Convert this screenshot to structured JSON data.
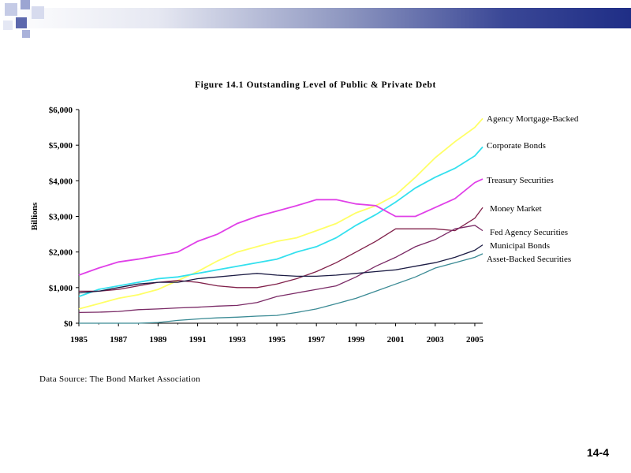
{
  "slide": {
    "number": "14-4"
  },
  "source_note": "Data Source: The Bond Market Association",
  "decor": {
    "bar_color": "#1f2e86",
    "square_light": "#c5cbe6",
    "square_dark": "#5c68ad"
  },
  "chart_data": {
    "type": "line",
    "title": "Figure 14.1  Outstanding Level of Public & Private Debt",
    "ylabel": "Billions",
    "xlabel": "",
    "xlim": [
      1985,
      2005.4
    ],
    "ylim": [
      0,
      6000
    ],
    "x_ticks": [
      1985,
      1987,
      1989,
      1991,
      1993,
      1995,
      1997,
      1999,
      2001,
      2003,
      2005
    ],
    "y_ticks": [
      0,
      1000,
      2000,
      3000,
      4000,
      5000,
      6000
    ],
    "y_tick_labels": [
      "$0",
      "$1,000",
      "$2,000",
      "$3,000",
      "$4,000",
      "$5,000",
      "$6,000"
    ],
    "grid": false,
    "legend": "direct labels at line ends",
    "series": [
      {
        "name": "Agency Mortgage-Backed",
        "color": "#ffff66",
        "points": [
          [
            1985,
            400
          ],
          [
            1986,
            550
          ],
          [
            1987,
            700
          ],
          [
            1988,
            800
          ],
          [
            1989,
            950
          ],
          [
            1990,
            1200
          ],
          [
            1991,
            1450
          ],
          [
            1992,
            1750
          ],
          [
            1993,
            2000
          ],
          [
            1994,
            2150
          ],
          [
            1995,
            2300
          ],
          [
            1996,
            2400
          ],
          [
            1997,
            2600
          ],
          [
            1998,
            2800
          ],
          [
            1999,
            3100
          ],
          [
            2000,
            3300
          ],
          [
            2001,
            3600
          ],
          [
            2002,
            4100
          ],
          [
            2003,
            4650
          ],
          [
            2004,
            5100
          ],
          [
            2005,
            5500
          ],
          [
            2005.4,
            5750
          ]
        ]
      },
      {
        "name": "Corporate Bonds",
        "color": "#33e0ee",
        "points": [
          [
            1985,
            750
          ],
          [
            1986,
            950
          ],
          [
            1987,
            1050
          ],
          [
            1988,
            1150
          ],
          [
            1989,
            1250
          ],
          [
            1990,
            1300
          ],
          [
            1991,
            1400
          ],
          [
            1992,
            1500
          ],
          [
            1993,
            1600
          ],
          [
            1994,
            1700
          ],
          [
            1995,
            1800
          ],
          [
            1996,
            2000
          ],
          [
            1997,
            2150
          ],
          [
            1998,
            2400
          ],
          [
            1999,
            2750
          ],
          [
            2000,
            3050
          ],
          [
            2001,
            3400
          ],
          [
            2002,
            3800
          ],
          [
            2003,
            4100
          ],
          [
            2004,
            4350
          ],
          [
            2005,
            4700
          ],
          [
            2005.4,
            4950
          ]
        ]
      },
      {
        "name": "Treasury Securities",
        "color": "#e040e8",
        "points": [
          [
            1985,
            1350
          ],
          [
            1986,
            1550
          ],
          [
            1987,
            1720
          ],
          [
            1988,
            1800
          ],
          [
            1989,
            1900
          ],
          [
            1990,
            2000
          ],
          [
            1991,
            2300
          ],
          [
            1992,
            2500
          ],
          [
            1993,
            2800
          ],
          [
            1994,
            3000
          ],
          [
            1995,
            3150
          ],
          [
            1996,
            3300
          ],
          [
            1997,
            3470
          ],
          [
            1998,
            3470
          ],
          [
            1999,
            3350
          ],
          [
            2000,
            3300
          ],
          [
            2001,
            3000
          ],
          [
            2002,
            3000
          ],
          [
            2003,
            3250
          ],
          [
            2004,
            3500
          ],
          [
            2005,
            3950
          ],
          [
            2005.4,
            4050
          ]
        ]
      },
      {
        "name": "Money Market",
        "color": "#80204a",
        "points": [
          [
            1985,
            900
          ],
          [
            1986,
            900
          ],
          [
            1987,
            950
          ],
          [
            1988,
            1050
          ],
          [
            1989,
            1150
          ],
          [
            1990,
            1200
          ],
          [
            1991,
            1150
          ],
          [
            1992,
            1050
          ],
          [
            1993,
            1000
          ],
          [
            1994,
            1000
          ],
          [
            1995,
            1100
          ],
          [
            1996,
            1250
          ],
          [
            1997,
            1450
          ],
          [
            1998,
            1700
          ],
          [
            1999,
            2000
          ],
          [
            2000,
            2300
          ],
          [
            2001,
            2650
          ],
          [
            2002,
            2650
          ],
          [
            2003,
            2650
          ],
          [
            2004,
            2600
          ],
          [
            2005,
            2950
          ],
          [
            2005.4,
            3250
          ]
        ]
      },
      {
        "name": "Fed Agency Securities",
        "color": "#7a2a66",
        "points": [
          [
            1985,
            300
          ],
          [
            1986,
            310
          ],
          [
            1987,
            330
          ],
          [
            1988,
            380
          ],
          [
            1989,
            400
          ],
          [
            1990,
            430
          ],
          [
            1991,
            450
          ],
          [
            1992,
            480
          ],
          [
            1993,
            500
          ],
          [
            1994,
            580
          ],
          [
            1995,
            750
          ],
          [
            1996,
            850
          ],
          [
            1997,
            950
          ],
          [
            1998,
            1050
          ],
          [
            1999,
            1300
          ],
          [
            2000,
            1600
          ],
          [
            2001,
            1850
          ],
          [
            2002,
            2150
          ],
          [
            2003,
            2350
          ],
          [
            2004,
            2650
          ],
          [
            2005,
            2750
          ],
          [
            2005.4,
            2600
          ]
        ]
      },
      {
        "name": "Municipal Bonds",
        "color": "#1c1c44",
        "points": [
          [
            1985,
            850
          ],
          [
            1986,
            900
          ],
          [
            1987,
            1000
          ],
          [
            1988,
            1100
          ],
          [
            1989,
            1150
          ],
          [
            1990,
            1150
          ],
          [
            1991,
            1250
          ],
          [
            1992,
            1300
          ],
          [
            1993,
            1350
          ],
          [
            1994,
            1400
          ],
          [
            1995,
            1350
          ],
          [
            1996,
            1320
          ],
          [
            1997,
            1320
          ],
          [
            1998,
            1350
          ],
          [
            1999,
            1400
          ],
          [
            2000,
            1450
          ],
          [
            2001,
            1500
          ],
          [
            2002,
            1600
          ],
          [
            2003,
            1700
          ],
          [
            2004,
            1850
          ],
          [
            2005,
            2050
          ],
          [
            2005.4,
            2200
          ]
        ]
      },
      {
        "name": "Asset-Backed Securities",
        "color": "#3a8a94",
        "points": [
          [
            1985,
            0
          ],
          [
            1986,
            0
          ],
          [
            1987,
            0
          ],
          [
            1988,
            0
          ],
          [
            1989,
            20
          ],
          [
            1990,
            80
          ],
          [
            1991,
            120
          ],
          [
            1992,
            150
          ],
          [
            1993,
            170
          ],
          [
            1994,
            200
          ],
          [
            1995,
            220
          ],
          [
            1996,
            300
          ],
          [
            1997,
            400
          ],
          [
            1998,
            550
          ],
          [
            1999,
            700
          ],
          [
            2000,
            900
          ],
          [
            2001,
            1100
          ],
          [
            2002,
            1300
          ],
          [
            2003,
            1550
          ],
          [
            2004,
            1700
          ],
          [
            2005,
            1850
          ],
          [
            2005.4,
            1950
          ]
        ]
      }
    ]
  }
}
